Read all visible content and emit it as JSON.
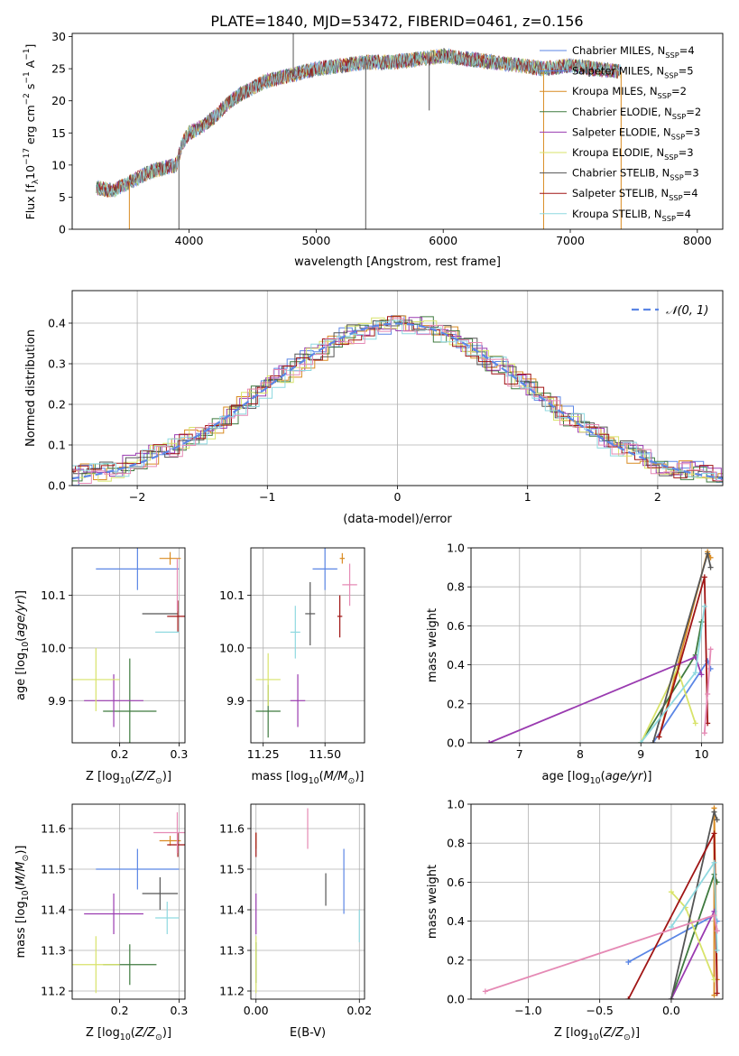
{
  "chart_data": [
    {
      "type": "line",
      "title": "PLATE=1840, MJD=53472, FIBERID=0461, z=0.156",
      "xlabel": "wavelength [Angstrom, rest frame]",
      "ylabel": "Flux [f$_\\lambda$10$^{-17}$ erg cm$^{-2}$ s$^{-1}$ A$^{-1}$]",
      "ylabel_parts": [
        "Flux [f",
        "λ",
        "10",
        "−17",
        " erg cm",
        "−2",
        " s",
        "−1",
        " A",
        "−1",
        "]"
      ],
      "xlim": [
        3080,
        8200
      ],
      "ylim": [
        0,
        30.5
      ],
      "xticks": [
        "4000",
        "5000",
        "6000",
        "7000",
        "8000"
      ],
      "yticks": [
        "0",
        "5",
        "10",
        "15",
        "20",
        "25",
        "30"
      ],
      "grid": false,
      "legend_position": "upper-right",
      "spectrum_nodes": {
        "x": [
          3270,
          3400,
          3500,
          3600,
          3700,
          3800,
          3900,
          3950,
          4000,
          4100,
          4200,
          4300,
          4400,
          4500,
          4600,
          4700,
          4800,
          4900,
          5000,
          5200,
          5400,
          5600,
          5800,
          6000,
          6200,
          6400,
          6600,
          6800,
          7000,
          7200,
          7400
        ],
        "y": [
          6.5,
          6.0,
          7.0,
          8.0,
          9.0,
          9.5,
          10.0,
          13.5,
          15.0,
          16.0,
          17.5,
          19.5,
          21.0,
          22.0,
          23.0,
          23.5,
          24.0,
          24.5,
          25.0,
          25.5,
          26.0,
          26.0,
          26.5,
          27.0,
          26.5,
          26.0,
          25.5,
          25.0,
          25.5,
          25.0,
          24.5
        ]
      },
      "series": [
        {
          "name": "Chabrier MILES, N$_{SSP}$=4",
          "label_main": "Chabrier MILES, N",
          "label_sub": "SSP",
          "label_end": "=4",
          "color": "#5b86e5"
        },
        {
          "name": "Salpeter MILES, N$_{SSP}$=5",
          "label_main": "Salpeter MILES, N",
          "label_sub": "SSP",
          "label_end": "=5",
          "color": "#5b86e5"
        },
        {
          "name": "Kroupa MILES, N$_{SSP}$=2",
          "label_main": "Kroupa MILES, N",
          "label_sub": "SSP",
          "label_end": "=2",
          "color": "#d98b22"
        },
        {
          "name": "Chabrier ELODIE, N$_{SSP}$=2",
          "label_main": "Chabrier ELODIE, N",
          "label_sub": "SSP",
          "label_end": "=2",
          "color": "#3f7a3f"
        },
        {
          "name": "Salpeter ELODIE, N$_{SSP}$=3",
          "label_main": "Salpeter ELODIE, N",
          "label_sub": "SSP",
          "label_end": "=3",
          "color": "#9a3bb0"
        },
        {
          "name": "Kroupa ELODIE, N$_{SSP}$=3",
          "label_main": "Kroupa ELODIE, N",
          "label_sub": "SSP",
          "label_end": "=3",
          "color": "#d8e36a"
        },
        {
          "name": "Chabrier STELIB, N$_{SSP}$=3",
          "label_main": "Chabrier STELIB, N",
          "label_sub": "SSP",
          "label_end": "=3",
          "color": "#555555"
        },
        {
          "name": "Salpeter STELIB, N$_{SSP}$=4",
          "label_main": "Salpeter STELIB, N",
          "label_sub": "SSP",
          "label_end": "=4",
          "color": "#a01515"
        },
        {
          "name": "Kroupa STELIB, N$_{SSP}$=4",
          "label_main": "Kroupa STELIB, N",
          "label_sub": "SSP",
          "label_end": "=4",
          "color": "#8fd9e0"
        }
      ]
    },
    {
      "type": "histogram",
      "xlabel": "(data-model)/error",
      "ylabel": "Normed distribution",
      "xlim": [
        -2.5,
        2.5
      ],
      "ylim": [
        0,
        0.48
      ],
      "xticks": [
        "−2",
        "−1",
        "0",
        "1",
        "2"
      ],
      "yticks": [
        "0.0",
        "0.1",
        "0.2",
        "0.3",
        "0.4"
      ],
      "grid": true,
      "legend_position": "upper-right",
      "reference_curve": {
        "name": "$\\mathcal{N}(0,1)$",
        "label": "𝒩(0, 1)",
        "color": "#5b86e5",
        "style": "dashed"
      },
      "bin_width": 0.1,
      "series_colors": [
        "#5b86e5",
        "#d98b22",
        "#3f7a3f",
        "#9a3bb0",
        "#d8e36a",
        "#555555",
        "#a01515",
        "#8fd9e0",
        "#e58ab5"
      ],
      "bin_values": {
        "x": [
          -2.5,
          -2.2,
          -1.9,
          -1.6,
          -1.3,
          -1.0,
          -0.7,
          -0.4,
          -0.1,
          0.2,
          0.5,
          0.8,
          1.1,
          1.4,
          1.7,
          2.0,
          2.3,
          2.5
        ],
        "y": [
          0.025,
          0.035,
          0.07,
          0.11,
          0.17,
          0.24,
          0.31,
          0.365,
          0.395,
          0.395,
          0.355,
          0.29,
          0.22,
          0.15,
          0.095,
          0.05,
          0.035,
          0.025
        ]
      }
    },
    {
      "type": "scatter",
      "xlabel": "Z [log$_{10}$(Z/Z$_\\odot$)]",
      "ylabel": "age  [log$_{10}$(age/yr)]",
      "xlim": [
        0.12,
        0.31
      ],
      "ylim": [
        9.82,
        10.19
      ],
      "xticks": [
        "0.2",
        "0.3"
      ],
      "yticks": [
        "9.9",
        "10.0",
        "10.1"
      ],
      "grid": true,
      "points": [
        {
          "x": 0.23,
          "y": 10.15,
          "xerr": 0.07,
          "yerr": 0.04,
          "color": "#5b86e5"
        },
        {
          "x": 0.285,
          "y": 10.17,
          "xerr": 0.018,
          "yerr": 0.012,
          "color": "#d98b22"
        },
        {
          "x": 0.217,
          "y": 9.88,
          "xerr": 0.045,
          "yerr": 0.1,
          "color": "#3f7a3f"
        },
        {
          "x": 0.19,
          "y": 9.9,
          "xerr": 0.05,
          "yerr": 0.05,
          "color": "#9a3bb0"
        },
        {
          "x": 0.16,
          "y": 9.94,
          "xerr": 0.04,
          "yerr": 0.06,
          "color": "#d8e36a"
        },
        {
          "x": 0.268,
          "y": 10.065,
          "xerr": 0.03,
          "yerr": 0.0,
          "color": "#555555"
        },
        {
          "x": 0.298,
          "y": 10.06,
          "xerr": 0.018,
          "yerr": 0.03,
          "color": "#a01515"
        },
        {
          "x": 0.28,
          "y": 10.03,
          "xerr": 0.02,
          "yerr": 0.0,
          "color": "#8fd9e0"
        },
        {
          "x": 0.297,
          "y": 10.12,
          "xerr": 0.0,
          "yerr": 0.05,
          "color": "#e58ab5"
        }
      ]
    },
    {
      "type": "scatter",
      "xlabel": "mass [log$_{10}$(M/M$_\\odot$)]",
      "ylabel": "",
      "xlim": [
        11.2,
        11.66
      ],
      "ylim": [
        9.82,
        10.19
      ],
      "xticks": [
        "11.25",
        "11.50"
      ],
      "yticks": [
        "9.9",
        "10.0",
        "10.1"
      ],
      "grid": true,
      "points": [
        {
          "x": 11.5,
          "y": 10.15,
          "xerr": 0.05,
          "yerr": 0.04,
          "color": "#5b86e5"
        },
        {
          "x": 11.57,
          "y": 10.17,
          "xerr": 0.01,
          "yerr": 0.01,
          "color": "#d98b22"
        },
        {
          "x": 11.27,
          "y": 9.88,
          "xerr": 0.05,
          "yerr": 0.05,
          "color": "#3f7a3f"
        },
        {
          "x": 11.39,
          "y": 9.9,
          "xerr": 0.03,
          "yerr": 0.05,
          "color": "#9a3bb0"
        },
        {
          "x": 11.27,
          "y": 9.94,
          "xerr": 0.05,
          "yerr": 0.05,
          "color": "#d8e36a"
        },
        {
          "x": 11.44,
          "y": 10.065,
          "xerr": 0.02,
          "yerr": 0.06,
          "color": "#555555"
        },
        {
          "x": 11.56,
          "y": 10.06,
          "xerr": 0.01,
          "yerr": 0.04,
          "color": "#a01515"
        },
        {
          "x": 11.38,
          "y": 10.03,
          "xerr": 0.02,
          "yerr": 0.05,
          "color": "#8fd9e0"
        },
        {
          "x": 11.6,
          "y": 10.12,
          "xerr": 0.03,
          "yerr": 0.04,
          "color": "#e58ab5"
        }
      ]
    },
    {
      "type": "line",
      "xlabel": "age  [log$_{10}$(age/yr)]",
      "ylabel": "mass weight",
      "xlim": [
        6.2,
        10.35
      ],
      "ylim": [
        0,
        1.0
      ],
      "xticks": [
        "7",
        "8",
        "9",
        "10"
      ],
      "yticks": [
        "0.0",
        "0.2",
        "0.4",
        "0.6",
        "0.8",
        "1.0"
      ],
      "grid": true,
      "series": [
        {
          "color": "#5b86e5",
          "x": [
            9.2,
            10.1,
            10.15
          ],
          "y": [
            0.0,
            0.42,
            0.38
          ]
        },
        {
          "color": "#d98b22",
          "x": [
            9.3,
            10.1,
            10.15
          ],
          "y": [
            0.03,
            0.98,
            0.95
          ]
        },
        {
          "color": "#3f7a3f",
          "x": [
            9.0,
            9.9,
            10.0
          ],
          "y": [
            0.0,
            0.45,
            0.62
          ]
        },
        {
          "color": "#9a3bb0",
          "x": [
            6.5,
            9.9,
            10.0
          ],
          "y": [
            0.0,
            0.44,
            0.35
          ]
        },
        {
          "color": "#d8e36a",
          "x": [
            9.0,
            9.6,
            9.9
          ],
          "y": [
            0.0,
            0.38,
            0.1
          ]
        },
        {
          "color": "#555555",
          "x": [
            9.2,
            10.1,
            10.15
          ],
          "y": [
            0.0,
            0.97,
            0.9
          ]
        },
        {
          "color": "#a01515",
          "x": [
            9.3,
            10.05,
            10.1
          ],
          "y": [
            0.03,
            0.85,
            0.1
          ]
        },
        {
          "color": "#8fd9e0",
          "x": [
            9.0,
            9.9,
            10.05
          ],
          "y": [
            0.0,
            0.36,
            0.7
          ]
        },
        {
          "color": "#e58ab5",
          "x": [
            10.05,
            10.15,
            10.1
          ],
          "y": [
            0.05,
            0.48,
            0.25
          ]
        }
      ]
    },
    {
      "type": "scatter",
      "xlabel": "Z [log$_{10}$(Z/Z$_\\odot$)]",
      "ylabel": "mass [log$_{10}$(M/M$_\\odot$)]",
      "xlim": [
        0.12,
        0.31
      ],
      "ylim": [
        11.18,
        11.66
      ],
      "xticks": [
        "0.2",
        "0.3"
      ],
      "yticks": [
        "11.2",
        "11.3",
        "11.4",
        "11.5",
        "11.6"
      ],
      "grid": true,
      "points": [
        {
          "x": 0.23,
          "y": 11.5,
          "xerr": 0.07,
          "yerr": 0.05,
          "color": "#5b86e5"
        },
        {
          "x": 0.285,
          "y": 11.57,
          "xerr": 0.018,
          "yerr": 0.012,
          "color": "#d98b22"
        },
        {
          "x": 0.217,
          "y": 11.265,
          "xerr": 0.045,
          "yerr": 0.05,
          "color": "#3f7a3f"
        },
        {
          "x": 0.19,
          "y": 11.39,
          "xerr": 0.05,
          "yerr": 0.05,
          "color": "#9a3bb0"
        },
        {
          "x": 0.16,
          "y": 11.265,
          "xerr": 0.04,
          "yerr": 0.07,
          "color": "#d8e36a"
        },
        {
          "x": 0.268,
          "y": 11.44,
          "xerr": 0.03,
          "yerr": 0.04,
          "color": "#555555"
        },
        {
          "x": 0.298,
          "y": 11.56,
          "xerr": 0.018,
          "yerr": 0.03,
          "color": "#a01515"
        },
        {
          "x": 0.28,
          "y": 11.38,
          "xerr": 0.02,
          "yerr": 0.04,
          "color": "#8fd9e0"
        },
        {
          "x": 0.297,
          "y": 11.59,
          "xerr": 0.04,
          "yerr": 0.05,
          "color": "#e58ab5"
        }
      ]
    },
    {
      "type": "scatter",
      "xlabel": "E(B-V)",
      "ylabel": "",
      "xlim": [
        -0.001,
        0.021
      ],
      "ylim": [
        11.18,
        11.66
      ],
      "xticks": [
        "0.00",
        "0.02"
      ],
      "yticks": [
        "11.2",
        "11.3",
        "11.4",
        "11.5",
        "11.6"
      ],
      "grid": true,
      "points": [
        {
          "x": 0.017,
          "y": 11.47,
          "xerr": 0.0,
          "yerr": 0.08,
          "color": "#5b86e5"
        },
        {
          "x": 0.0,
          "y": 11.57,
          "xerr": 0.0,
          "yerr": 0.02,
          "color": "#d98b22"
        },
        {
          "x": 0.0,
          "y": 11.27,
          "xerr": 0.0,
          "yerr": 0.05,
          "color": "#3f7a3f"
        },
        {
          "x": 0.0,
          "y": 11.39,
          "xerr": 0.0,
          "yerr": 0.05,
          "color": "#9a3bb0"
        },
        {
          "x": 0.0,
          "y": 11.265,
          "xerr": 0.0,
          "yerr": 0.07,
          "color": "#d8e36a"
        },
        {
          "x": 0.0135,
          "y": 11.45,
          "xerr": 0.0,
          "yerr": 0.04,
          "color": "#555555"
        },
        {
          "x": 0.0,
          "y": 11.56,
          "xerr": 0.0,
          "yerr": 0.03,
          "color": "#a01515"
        },
        {
          "x": 0.02,
          "y": 11.36,
          "xerr": 0.0,
          "yerr": 0.04,
          "color": "#8fd9e0"
        },
        {
          "x": 0.01,
          "y": 11.6,
          "xerr": 0.0,
          "yerr": 0.05,
          "color": "#e58ab5"
        }
      ]
    },
    {
      "type": "line",
      "xlabel": "Z [log$_{10}$(Z/Z$_\\odot$)]",
      "ylabel": "mass weight",
      "xlim": [
        -1.4,
        0.36
      ],
      "ylim": [
        0,
        1.0
      ],
      "xticks": [
        "−1.0",
        "−0.5",
        "0.0"
      ],
      "yticks": [
        "0.0",
        "0.2",
        "0.4",
        "0.6",
        "0.8",
        "1.0"
      ],
      "grid": true,
      "series": [
        {
          "color": "#5b86e5",
          "x": [
            -0.3,
            0.3,
            0.32
          ],
          "y": [
            0.19,
            0.43,
            0.4
          ]
        },
        {
          "color": "#d98b22",
          "x": [
            0.3,
            0.3,
            0.32
          ],
          "y": [
            0.02,
            0.98,
            0.1
          ]
        },
        {
          "color": "#3f7a3f",
          "x": [
            0.0,
            0.3,
            0.32
          ],
          "y": [
            0.0,
            0.64,
            0.6
          ]
        },
        {
          "color": "#9a3bb0",
          "x": [
            0.0,
            0.3,
            0.32
          ],
          "y": [
            0.0,
            0.45,
            0.35
          ]
        },
        {
          "color": "#d8e36a",
          "x": [
            0.0,
            0.1,
            0.3
          ],
          "y": [
            0.55,
            0.47,
            0.1
          ]
        },
        {
          "color": "#555555",
          "x": [
            0.0,
            0.3,
            0.32
          ],
          "y": [
            0.0,
            0.96,
            0.92
          ]
        },
        {
          "color": "#a01515",
          "x": [
            -0.3,
            0.3,
            0.32
          ],
          "y": [
            0.0,
            0.85,
            0.03
          ]
        },
        {
          "color": "#8fd9e0",
          "x": [
            0.0,
            0.3,
            0.32
          ],
          "y": [
            0.37,
            0.7,
            0.25
          ]
        },
        {
          "color": "#e58ab5",
          "x": [
            -1.3,
            0.3,
            0.32
          ],
          "y": [
            0.04,
            0.43,
            0.35
          ]
        }
      ]
    }
  ]
}
